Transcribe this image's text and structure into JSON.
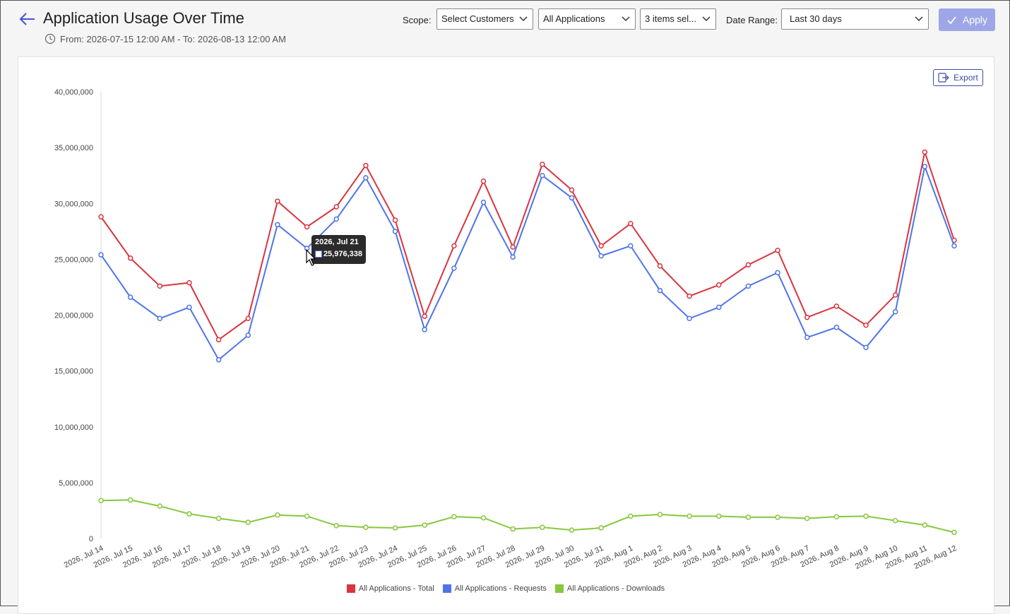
{
  "header": {
    "title": "Application Usage Over Time",
    "date_range_text": "From: 2026-07-15 12:00 AM - To: 2026-08-13 12:00 AM",
    "back_icon": "arrow-left-icon"
  },
  "filters": {
    "scope_label": "Scope:",
    "customers": "Select Customers",
    "applications": "All Applications",
    "items": "3 items sel...",
    "date_range_label": "Date Range:",
    "date_range": "Last 30 days",
    "apply_label": "Apply"
  },
  "toolbar": {
    "export_label": "Export"
  },
  "tooltip": {
    "date": "2026, Jul 21",
    "value": "25,976,338"
  },
  "colors": {
    "total": "#d9343f",
    "requests": "#4f74e8",
    "downloads": "#86c83d",
    "accent": "#3b4aa8"
  },
  "chart_data": {
    "type": "line",
    "categories": [
      "2026, Jul 14",
      "2026, Jul 15",
      "2026, Jul 16",
      "2026, Jul 17",
      "2026, Jul 18",
      "2026, Jul 19",
      "2026, Jul 20",
      "2026, Jul 21",
      "2026, Jul 22",
      "2026, Jul 23",
      "2026, Jul 24",
      "2026, Jul 25",
      "2026, Jul 26",
      "2026, Jul 27",
      "2026, Jul 28",
      "2026, Jul 29",
      "2026, Jul 30",
      "2026, Jul 31",
      "2026, Aug 1",
      "2026, Aug 2",
      "2026, Aug 3",
      "2026, Aug 4",
      "2026, Aug 5",
      "2026, Aug 6",
      "2026, Aug 7",
      "2026, Aug 8",
      "2026, Aug 9",
      "2026, Aug 10",
      "2026, Aug 11",
      "2026, Aug 12"
    ],
    "series": [
      {
        "name": "All Applications - Total",
        "values": [
          28800000,
          25100000,
          22600000,
          22900000,
          17800000,
          19700000,
          30200000,
          27900000,
          29700000,
          33400000,
          28500000,
          19900000,
          26200000,
          32000000,
          26100000,
          33500000,
          31200000,
          26200000,
          28200000,
          24400000,
          21700000,
          22700000,
          24500000,
          25800000,
          19800000,
          20800000,
          19100000,
          21800000,
          34600000,
          26700000
        ]
      },
      {
        "name": "All Applications - Requests",
        "values": [
          25400000,
          21600000,
          19700000,
          20700000,
          16000000,
          18200000,
          28100000,
          25976338,
          28600000,
          32300000,
          27500000,
          18700000,
          24200000,
          30100000,
          25200000,
          32500000,
          30500000,
          25300000,
          26200000,
          22200000,
          19700000,
          20700000,
          22600000,
          23800000,
          18000000,
          18900000,
          17100000,
          20300000,
          33300000,
          26200000
        ]
      },
      {
        "name": "All Applications - Downloads",
        "values": [
          3400000,
          3450000,
          2900000,
          2200000,
          1800000,
          1450000,
          2100000,
          2000000,
          1150000,
          1000000,
          950000,
          1200000,
          1950000,
          1850000,
          850000,
          1000000,
          750000,
          950000,
          2000000,
          2150000,
          2000000,
          2000000,
          1900000,
          1900000,
          1800000,
          1950000,
          2000000,
          1600000,
          1200000,
          550000
        ]
      }
    ],
    "yticks": [
      "40,000,000",
      "35,000,000",
      "30,000,000",
      "25,000,000",
      "20,000,000",
      "15,000,000",
      "10,000,000",
      "5,000,000",
      "0"
    ],
    "ylim": [
      0,
      40000000
    ],
    "grid": false,
    "legend_position": "bottom"
  }
}
